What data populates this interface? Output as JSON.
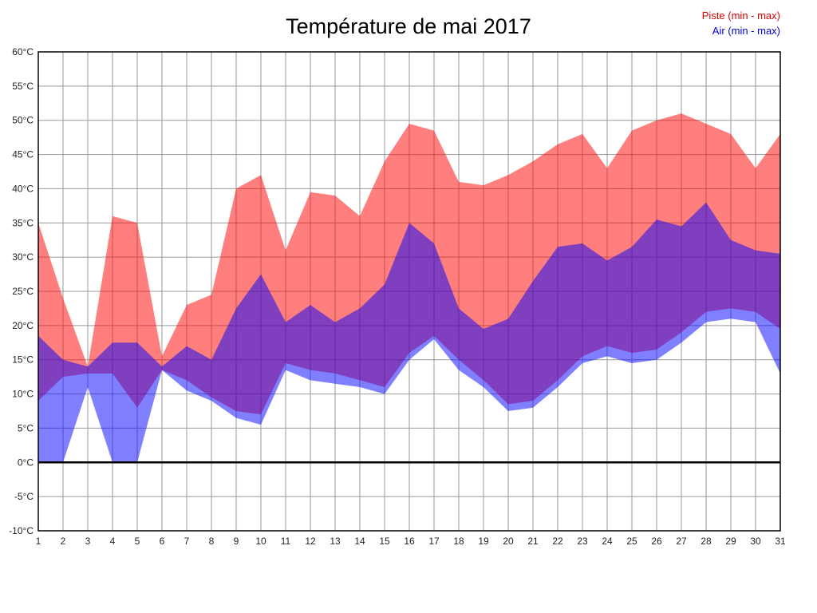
{
  "title": "Température de mai 2017",
  "legend": {
    "piste": {
      "label": "Piste (min - max)",
      "color": "#dd0000"
    },
    "air": {
      "label": "Air (min - max)",
      "color": "#0000dd"
    }
  },
  "chart_data": {
    "type": "area",
    "title": "Température de mai 2017",
    "xlabel": "",
    "ylabel": "",
    "y_unit": "°C",
    "ylim": [
      -10,
      60
    ],
    "yticks": [
      60,
      55,
      50,
      45,
      40,
      35,
      30,
      25,
      20,
      15,
      10,
      5,
      0,
      -5,
      -10
    ],
    "x": [
      1,
      2,
      3,
      4,
      5,
      6,
      7,
      8,
      9,
      10,
      11,
      12,
      13,
      14,
      15,
      16,
      17,
      18,
      19,
      20,
      21,
      22,
      23,
      24,
      25,
      26,
      27,
      28,
      29,
      30,
      31
    ],
    "grid": true,
    "zero_line": true,
    "legend_position": "top-right",
    "series": [
      {
        "name": "Piste (min - max)",
        "color": "rgba(255,0,0,0.5)",
        "max": [
          35,
          24,
          14,
          36,
          35,
          15.5,
          23,
          24.5,
          40,
          42,
          31,
          39.5,
          39,
          36,
          44,
          49.5,
          48.5,
          41,
          40.5,
          42,
          44,
          46.5,
          48,
          43,
          48.5,
          50,
          51,
          49.5,
          48,
          43,
          48
        ],
        "min": [
          9,
          12.5,
          13,
          13,
          8,
          13.5,
          12,
          9.5,
          7.5,
          7,
          14.5,
          13.5,
          13,
          12,
          11,
          16,
          18.5,
          15,
          12,
          8.5,
          9,
          12,
          15.5,
          17,
          16,
          16.5,
          19,
          22,
          22.5,
          22,
          19.5
        ]
      },
      {
        "name": "Air (min - max)",
        "color": "rgba(0,0,255,0.5)",
        "max": [
          18.5,
          15,
          14,
          17.5,
          17.5,
          14,
          17,
          15,
          22.5,
          27.5,
          20.5,
          23,
          20.5,
          22.5,
          26,
          35,
          32,
          22.5,
          19.5,
          21,
          26.5,
          31.5,
          32,
          29.5,
          31.5,
          35.5,
          34.5,
          38,
          32.5,
          31,
          30.5
        ],
        "min": [
          0,
          0,
          11,
          0,
          0,
          13.5,
          10.5,
          9,
          6.5,
          5.5,
          13.5,
          12,
          11.5,
          11,
          10,
          15,
          18,
          13.5,
          11,
          7.5,
          8,
          11,
          14.5,
          15.5,
          14.5,
          15,
          17.5,
          20.5,
          21,
          20.5,
          13
        ]
      }
    ]
  }
}
